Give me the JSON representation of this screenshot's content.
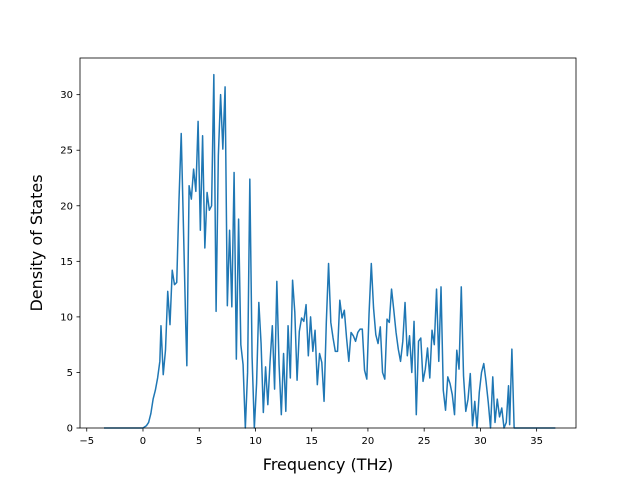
{
  "chart_data": {
    "type": "line",
    "title": "",
    "xlabel": "Frequency (THz)",
    "ylabel": "Density of States",
    "xlim": [
      -5.6,
      38.5
    ],
    "ylim": [
      0,
      33.3
    ],
    "x_ticks": [
      -5,
      0,
      5,
      10,
      15,
      20,
      25,
      30,
      35
    ],
    "y_ticks": [
      0,
      5,
      10,
      15,
      20,
      25,
      30
    ],
    "grid": false,
    "legend": "none",
    "line_color": "#1f77b4",
    "series": [
      {
        "points": [
          [
            -3.4,
            0
          ],
          [
            -2.0,
            0
          ],
          [
            -1.0,
            0
          ],
          [
            0.0,
            0
          ],
          [
            0.3,
            0.2
          ],
          [
            0.5,
            0.5
          ],
          [
            0.7,
            1.3
          ],
          [
            0.9,
            2.6
          ],
          [
            1.1,
            3.4
          ],
          [
            1.3,
            4.5
          ],
          [
            1.5,
            6.0
          ],
          [
            1.6,
            9.2
          ],
          [
            1.8,
            4.8
          ],
          [
            2.0,
            7.0
          ],
          [
            2.2,
            12.3
          ],
          [
            2.4,
            9.3
          ],
          [
            2.6,
            14.2
          ],
          [
            2.8,
            12.9
          ],
          [
            3.0,
            13.1
          ],
          [
            3.2,
            20.5
          ],
          [
            3.4,
            26.5
          ],
          [
            3.6,
            18.0
          ],
          [
            3.8,
            9.3
          ],
          [
            3.9,
            5.6
          ],
          [
            4.1,
            21.8
          ],
          [
            4.3,
            20.6
          ],
          [
            4.5,
            23.3
          ],
          [
            4.7,
            21.3
          ],
          [
            4.9,
            27.6
          ],
          [
            5.1,
            17.8
          ],
          [
            5.3,
            26.3
          ],
          [
            5.5,
            16.2
          ],
          [
            5.7,
            21.2
          ],
          [
            5.9,
            19.6
          ],
          [
            6.1,
            20.0
          ],
          [
            6.3,
            31.8
          ],
          [
            6.5,
            10.5
          ],
          [
            6.7,
            24.5
          ],
          [
            6.9,
            30.0
          ],
          [
            7.1,
            25.1
          ],
          [
            7.3,
            30.7
          ],
          [
            7.5,
            11.0
          ],
          [
            7.7,
            17.8
          ],
          [
            7.9,
            10.9
          ],
          [
            8.1,
            23.0
          ],
          [
            8.3,
            6.2
          ],
          [
            8.5,
            18.8
          ],
          [
            8.7,
            7.5
          ],
          [
            8.9,
            5.7
          ],
          [
            9.1,
            0
          ],
          [
            9.3,
            5.0
          ],
          [
            9.5,
            22.4
          ],
          [
            9.7,
            6.4
          ],
          [
            9.9,
            0
          ],
          [
            10.1,
            4.0
          ],
          [
            10.3,
            11.3
          ],
          [
            10.5,
            7.6
          ],
          [
            10.7,
            1.4
          ],
          [
            10.9,
            5.5
          ],
          [
            11.1,
            2.1
          ],
          [
            11.3,
            6.0
          ],
          [
            11.5,
            9.2
          ],
          [
            11.7,
            3.5
          ],
          [
            11.9,
            13.2
          ],
          [
            12.1,
            5.7
          ],
          [
            12.3,
            1.2
          ],
          [
            12.5,
            6.7
          ],
          [
            12.7,
            1.5
          ],
          [
            12.9,
            9.2
          ],
          [
            13.1,
            4.5
          ],
          [
            13.3,
            13.3
          ],
          [
            13.5,
            10.4
          ],
          [
            13.7,
            4.3
          ],
          [
            13.9,
            8.7
          ],
          [
            14.1,
            9.9
          ],
          [
            14.3,
            9.6
          ],
          [
            14.5,
            11.1
          ],
          [
            14.7,
            6.5
          ],
          [
            14.9,
            10.0
          ],
          [
            15.1,
            6.9
          ],
          [
            15.3,
            8.8
          ],
          [
            15.5,
            3.9
          ],
          [
            15.7,
            6.7
          ],
          [
            15.9,
            5.9
          ],
          [
            16.1,
            2.4
          ],
          [
            16.3,
            9.5
          ],
          [
            16.5,
            14.8
          ],
          [
            16.7,
            9.5
          ],
          [
            16.9,
            8.1
          ],
          [
            17.1,
            6.9
          ],
          [
            17.3,
            6.9
          ],
          [
            17.5,
            11.5
          ],
          [
            17.7,
            9.9
          ],
          [
            17.9,
            10.6
          ],
          [
            18.1,
            8.1
          ],
          [
            18.3,
            6.0
          ],
          [
            18.5,
            8.6
          ],
          [
            18.7,
            8.3
          ],
          [
            18.9,
            7.8
          ],
          [
            19.1,
            8.6
          ],
          [
            19.3,
            8.9
          ],
          [
            19.5,
            8.9
          ],
          [
            19.7,
            5.2
          ],
          [
            19.9,
            4.4
          ],
          [
            20.1,
            10.3
          ],
          [
            20.3,
            14.8
          ],
          [
            20.5,
            10.8
          ],
          [
            20.7,
            8.4
          ],
          [
            20.9,
            7.6
          ],
          [
            21.1,
            9.1
          ],
          [
            21.3,
            5.0
          ],
          [
            21.5,
            4.4
          ],
          [
            21.7,
            9.8
          ],
          [
            21.9,
            9.5
          ],
          [
            22.1,
            12.5
          ],
          [
            22.3,
            10.6
          ],
          [
            22.5,
            8.6
          ],
          [
            22.7,
            7.1
          ],
          [
            22.9,
            6.0
          ],
          [
            23.1,
            7.8
          ],
          [
            23.3,
            11.3
          ],
          [
            23.5,
            6.5
          ],
          [
            23.7,
            8.3
          ],
          [
            23.9,
            5.0
          ],
          [
            24.1,
            9.6
          ],
          [
            24.3,
            1.2
          ],
          [
            24.5,
            7.8
          ],
          [
            24.7,
            8.1
          ],
          [
            24.9,
            4.2
          ],
          [
            25.1,
            5.3
          ],
          [
            25.3,
            7.2
          ],
          [
            25.5,
            4.5
          ],
          [
            25.7,
            8.8
          ],
          [
            25.9,
            7.5
          ],
          [
            26.1,
            12.5
          ],
          [
            26.3,
            6.0
          ],
          [
            26.5,
            12.7
          ],
          [
            26.7,
            3.4
          ],
          [
            26.9,
            1.6
          ],
          [
            27.1,
            4.6
          ],
          [
            27.3,
            4.0
          ],
          [
            27.5,
            3.0
          ],
          [
            27.7,
            1.2
          ],
          [
            27.9,
            7.0
          ],
          [
            28.1,
            5.3
          ],
          [
            28.3,
            12.7
          ],
          [
            28.5,
            4.7
          ],
          [
            28.7,
            1.5
          ],
          [
            28.9,
            2.6
          ],
          [
            29.1,
            4.9
          ],
          [
            29.3,
            0.2
          ],
          [
            29.5,
            2.4
          ],
          [
            29.7,
            0
          ],
          [
            29.9,
            3.2
          ],
          [
            30.1,
            5.0
          ],
          [
            30.3,
            5.8
          ],
          [
            30.5,
            4.2
          ],
          [
            30.7,
            2.3
          ],
          [
            30.9,
            0
          ],
          [
            31.1,
            4.6
          ],
          [
            31.3,
            0.5
          ],
          [
            31.5,
            2.6
          ],
          [
            31.7,
            1.0
          ],
          [
            31.9,
            1.8
          ],
          [
            32.1,
            0
          ],
          [
            32.3,
            0.5
          ],
          [
            32.5,
            3.8
          ],
          [
            32.6,
            0.3
          ],
          [
            32.8,
            7.1
          ],
          [
            33.0,
            0
          ],
          [
            34.0,
            0
          ],
          [
            35.0,
            0
          ],
          [
            36.0,
            0
          ],
          [
            36.6,
            0
          ]
        ]
      }
    ]
  }
}
